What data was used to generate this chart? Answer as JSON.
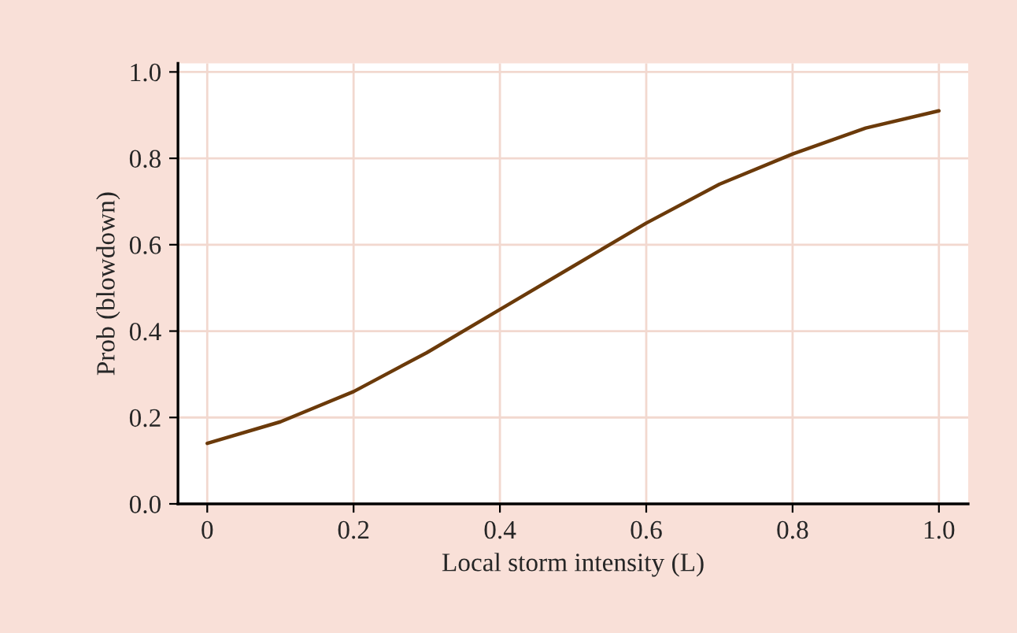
{
  "chart_data": {
    "type": "line",
    "xlabel": "Local storm intensity (L)",
    "ylabel": "Prob (blowdown)",
    "x": [
      0,
      0.1,
      0.2,
      0.3,
      0.4,
      0.5,
      0.6,
      0.7,
      0.8,
      0.9,
      1.0
    ],
    "series": [
      {
        "color": "#6b3a0a",
        "values": [
          0.14,
          0.19,
          0.26,
          0.35,
          0.45,
          0.55,
          0.65,
          0.74,
          0.81,
          0.87,
          0.91
        ]
      }
    ],
    "xlim": [
      -0.04,
      1.04
    ],
    "ylim": [
      0,
      1.02
    ],
    "xticks": [
      {
        "value": 0,
        "label": "0"
      },
      0.2,
      0.4,
      0.6,
      0.8,
      {
        "value": 1,
        "label": "1.0"
      }
    ],
    "yticks": [
      {
        "value": 0,
        "label": "0.0"
      },
      0.2,
      0.4,
      0.6,
      0.8,
      {
        "value": 1,
        "label": "1.0"
      }
    ],
    "grid": true,
    "legend": false,
    "marker": "none",
    "line_style": "solid"
  }
}
